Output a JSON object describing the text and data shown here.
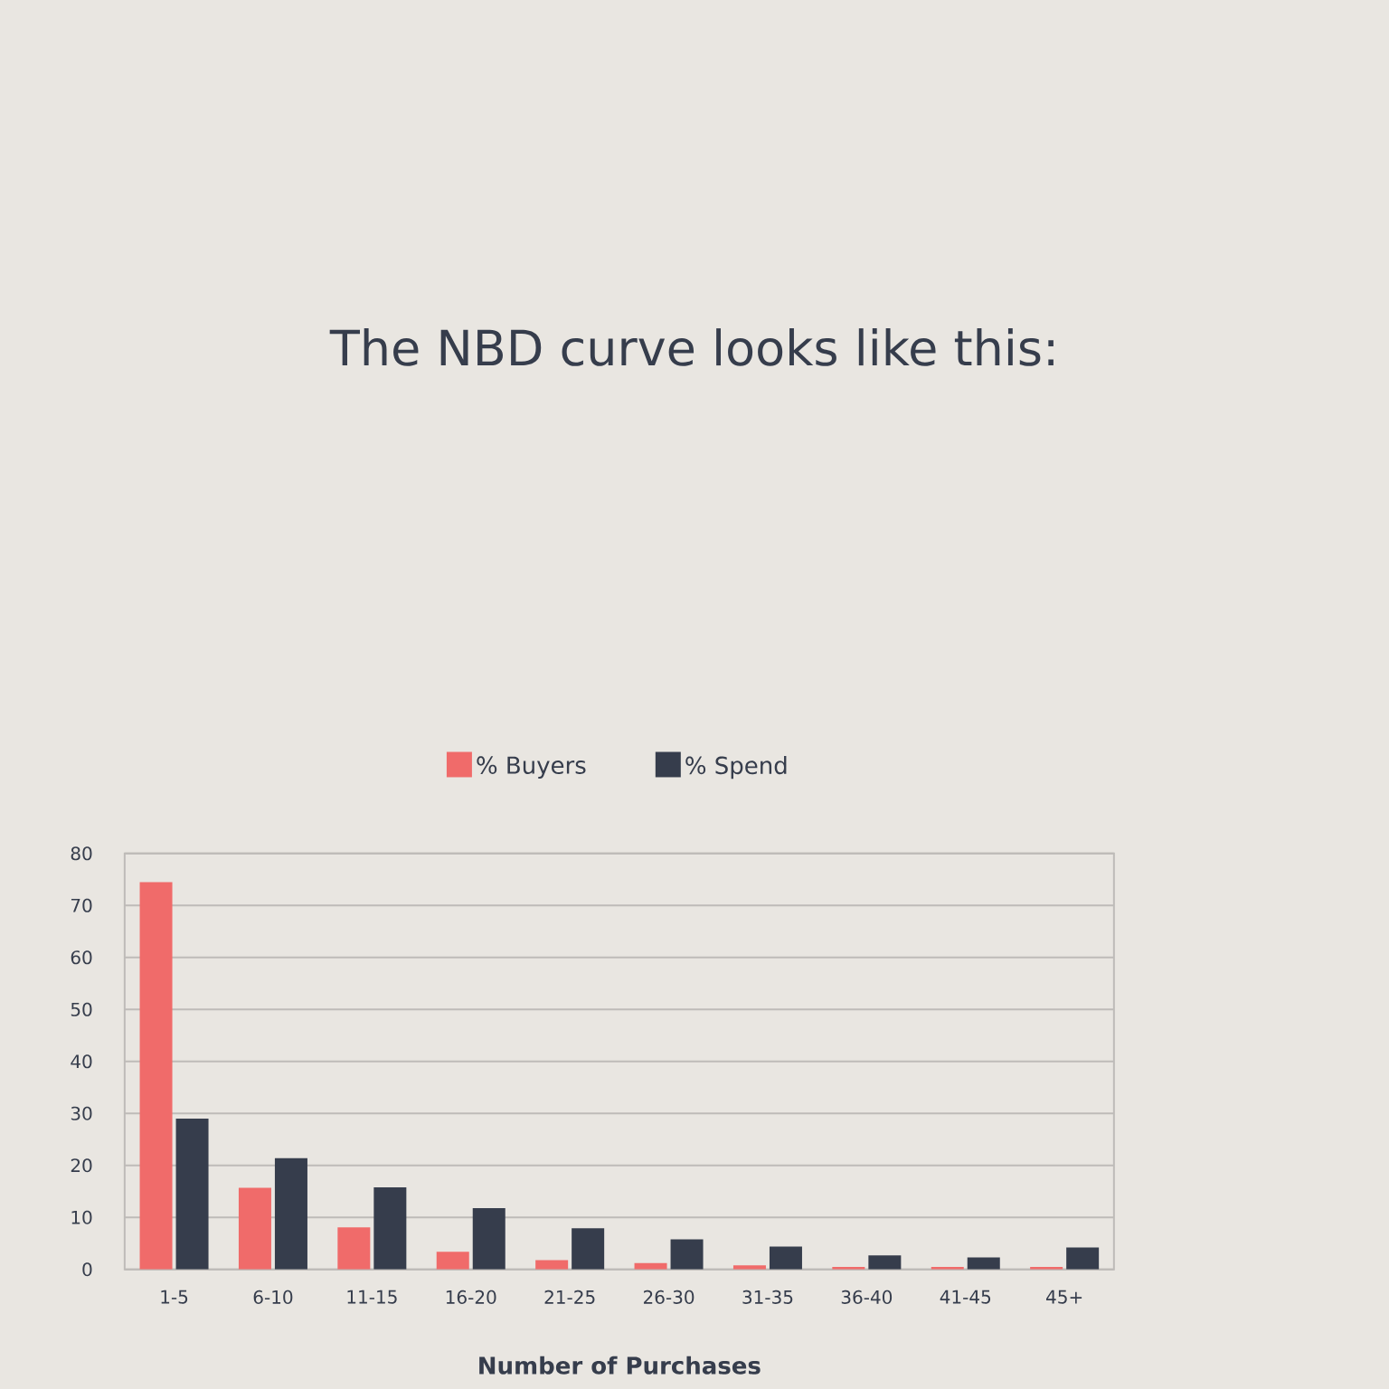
{
  "chart_data": {
    "type": "bar",
    "title": "The NBD curve looks like this:",
    "xlabel": "Number of Purchases",
    "categories": [
      "1-5",
      "6-10",
      "11-15",
      "16-20",
      "21-25",
      "26-30",
      "31-35",
      "36-40",
      "41-45",
      "45+"
    ],
    "series": [
      {
        "name": "% Buyers",
        "color": "#f06b6a",
        "values": [
          74.5,
          15.7,
          8.1,
          3.4,
          1.8,
          1.2,
          0.8,
          0.5,
          0.5,
          0.5
        ]
      },
      {
        "name": "% Spend",
        "color": "#363d4c",
        "values": [
          29.0,
          21.4,
          15.8,
          11.8,
          7.9,
          5.8,
          4.4,
          2.7,
          2.3,
          4.2
        ]
      }
    ],
    "ylim": [
      0,
      80
    ],
    "yticks": [
      0,
      10,
      20,
      30,
      40,
      50,
      60,
      70,
      80
    ],
    "grid": "y",
    "legend": "top"
  }
}
